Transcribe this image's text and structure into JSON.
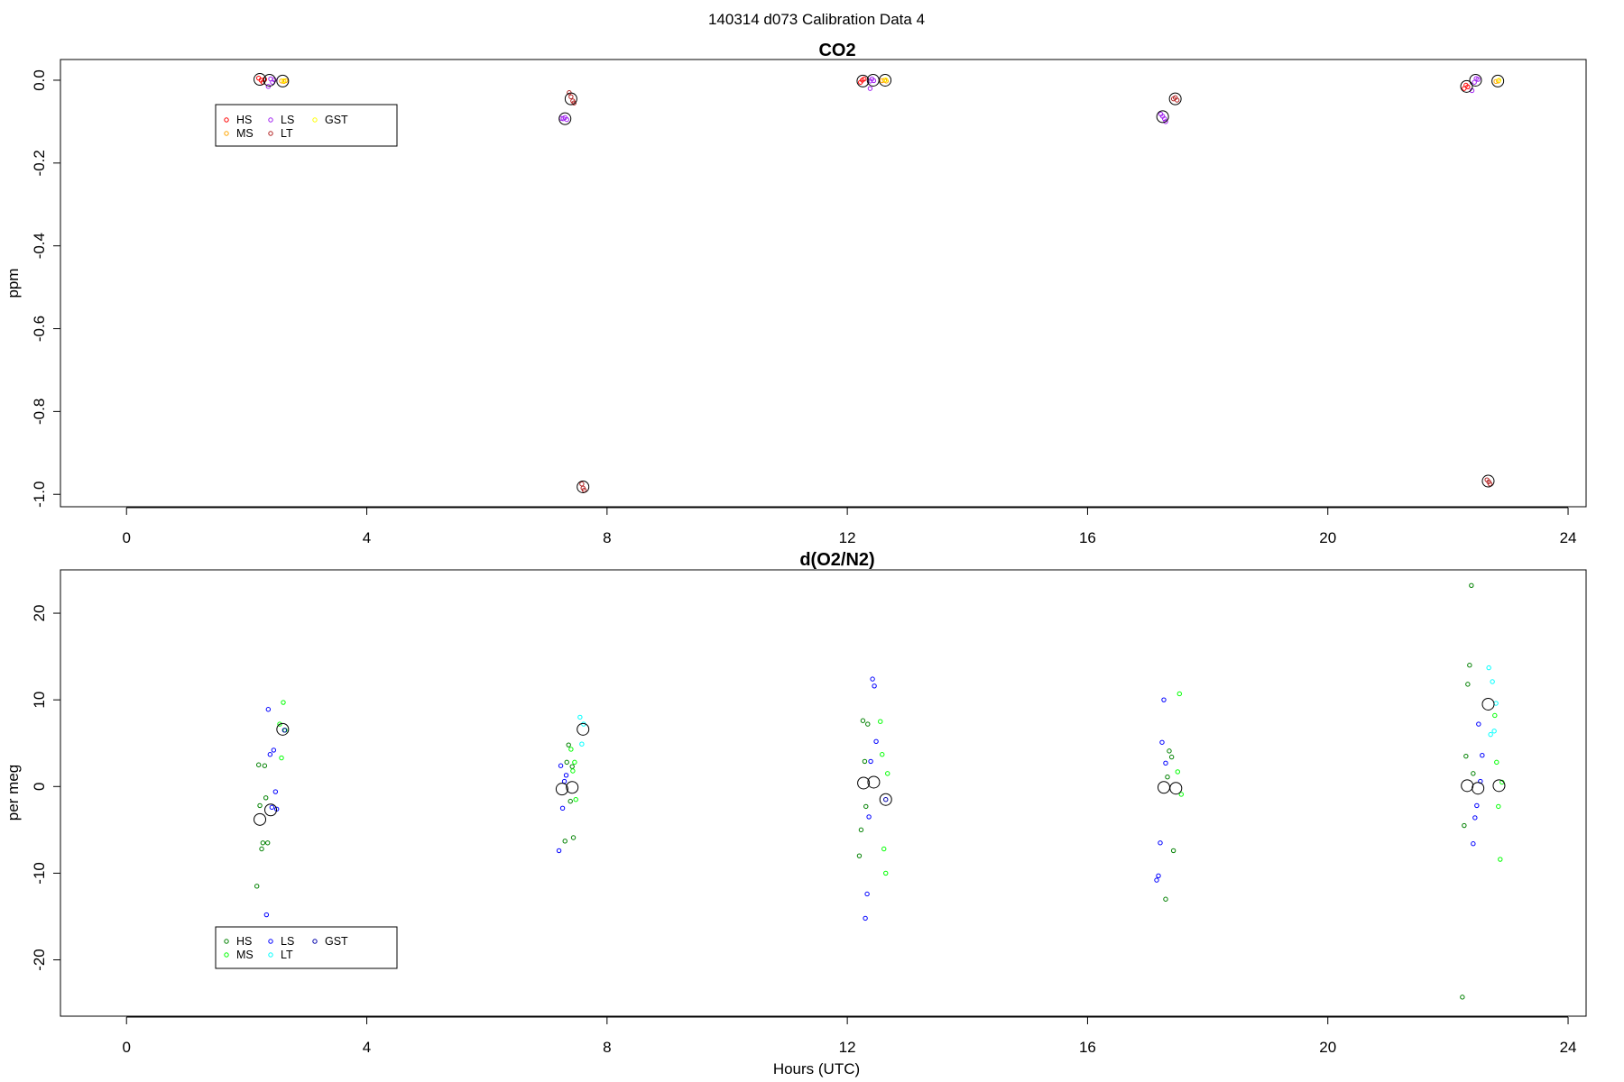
{
  "figure": {
    "suptitle": "140314   d073   Calibration Data 4"
  },
  "chart_data": [
    {
      "type": "scatter",
      "title": "CO2",
      "xlabel": "",
      "ylabel": "ppm",
      "xlim": [
        -1.1,
        24.3
      ],
      "ylim": [
        -1.03,
        0.05
      ],
      "xticks": [
        0,
        4,
        8,
        12,
        16,
        20,
        24
      ],
      "yticks": [
        0.0,
        -0.2,
        -0.4,
        -0.6,
        -0.8,
        -1.0
      ],
      "ytick_labels": [
        "0.0",
        "-0.2",
        "-0.4",
        "-0.6",
        "-0.8",
        "-1.0"
      ],
      "legend": {
        "position": "top-left",
        "columns": 3
      },
      "series": [
        {
          "name": "HS",
          "color": "#ff0000",
          "x": [
            2.2,
            2.24,
            2.27,
            2.3,
            12.22,
            12.25,
            12.28,
            22.27,
            22.3,
            22.33
          ],
          "y": [
            0.005,
            0.0,
            -0.005,
            0.002,
            -0.005,
            0.0,
            0.003,
            -0.02,
            -0.012,
            -0.016
          ]
        },
        {
          "name": "MS",
          "color": "#ffa500",
          "x": [
            2.58,
            2.62,
            2.65,
            12.58,
            12.62,
            12.65,
            22.8,
            22.84
          ],
          "y": [
            -0.002,
            -0.003,
            -0.001,
            -0.001,
            0.0,
            -0.002,
            -0.003,
            -0.002
          ]
        },
        {
          "name": "LS",
          "color": "#a020f0",
          "x": [
            2.4,
            2.43,
            2.46,
            2.36,
            7.24,
            7.27,
            7.3,
            7.33,
            12.38,
            12.41,
            12.44,
            12.38,
            17.22,
            17.25,
            17.28,
            17.3,
            22.44,
            22.47,
            22.5,
            22.4
          ],
          "y": [
            0.003,
            -0.005,
            0.001,
            -0.015,
            -0.092,
            -0.093,
            -0.09,
            -0.095,
            -0.002,
            0.003,
            -0.001,
            -0.02,
            -0.082,
            -0.087,
            -0.093,
            -0.1,
            -0.005,
            0.004,
            0.002,
            -0.025
          ]
        },
        {
          "name": "LT",
          "color": "#b22222",
          "x": [
            7.37,
            7.4,
            7.43,
            7.45,
            7.58,
            7.6,
            7.62,
            17.43,
            17.46,
            17.49,
            22.65,
            22.68,
            22.7
          ],
          "y": [
            -0.03,
            -0.04,
            -0.05,
            -0.055,
            -0.975,
            -0.985,
            -0.99,
            -0.045,
            -0.042,
            -0.048,
            -0.965,
            -0.97,
            -0.975
          ]
        },
        {
          "name": "GST",
          "color": "#ffff00",
          "x": [
            2.62,
            12.64,
            22.85
          ],
          "y": [
            -0.001,
            0.001,
            0.0
          ]
        }
      ],
      "means": {
        "x": [
          2.22,
          2.38,
          2.6,
          7.3,
          7.4,
          7.6,
          12.26,
          12.43,
          12.63,
          17.25,
          17.46,
          22.31,
          22.46,
          22.67,
          22.83
        ],
        "y": [
          0.002,
          0.0,
          -0.002,
          -0.093,
          -0.045,
          -0.982,
          -0.002,
          0.0,
          0.0,
          -0.088,
          -0.045,
          -0.015,
          0.0,
          -0.968,
          -0.002
        ]
      }
    },
    {
      "type": "scatter",
      "title": "d(O2/N2)",
      "xlabel": "Hours (UTC)",
      "ylabel": "per meg",
      "xlim": [
        -1.1,
        24.3
      ],
      "ylim": [
        -26.5,
        25
      ],
      "xticks": [
        0,
        4,
        8,
        12,
        16,
        20,
        24
      ],
      "yticks": [
        20,
        10,
        0,
        -10,
        -20
      ],
      "ytick_labels": [
        "20",
        "10",
        "0",
        "-10",
        "-20"
      ],
      "legend": {
        "position": "bottom-left",
        "columns": 3
      },
      "series": [
        {
          "name": "HS",
          "color": "#008000",
          "x": [
            2.17,
            2.2,
            2.22,
            2.25,
            2.27,
            2.3,
            2.32,
            2.35,
            7.3,
            7.33,
            7.36,
            7.39,
            7.42,
            7.44,
            12.2,
            12.23,
            12.26,
            12.29,
            12.31,
            12.34,
            17.3,
            17.33,
            17.36,
            17.4,
            17.43,
            22.24,
            22.27,
            22.3,
            22.33,
            22.36,
            22.39,
            22.42
          ],
          "y": [
            -11.5,
            2.5,
            -2.2,
            -7.2,
            -6.5,
            2.4,
            -1.3,
            -6.5,
            -6.3,
            2.8,
            4.8,
            -1.7,
            2.3,
            -5.9,
            -8,
            -5,
            7.6,
            2.9,
            -2.3,
            7.2,
            -13,
            1.1,
            4.1,
            3.4,
            -7.4,
            -24.3,
            -4.5,
            3.5,
            11.8,
            14,
            23.2,
            1.5
          ]
        },
        {
          "name": "MS",
          "color": "#00ff00",
          "x": [
            2.55,
            2.58,
            2.61,
            2.64,
            7.4,
            7.43,
            7.46,
            7.48,
            12.55,
            12.58,
            12.61,
            12.64,
            12.67,
            17.5,
            17.53,
            17.56,
            22.78,
            22.81,
            22.84,
            22.87,
            22.9
          ],
          "y": [
            7.2,
            3.3,
            9.7,
            6.5,
            4.3,
            1.8,
            2.8,
            -1.5,
            7.5,
            3.7,
            -7.2,
            -10,
            1.5,
            1.7,
            10.7,
            -0.9,
            8.2,
            2.8,
            -2.3,
            -8.4,
            0.5
          ]
        },
        {
          "name": "LS",
          "color": "#0000ff",
          "x": [
            2.33,
            2.36,
            2.39,
            2.42,
            2.45,
            2.48,
            2.5,
            7.2,
            7.23,
            7.26,
            7.29,
            7.32,
            12.3,
            12.33,
            12.36,
            12.39,
            12.42,
            12.45,
            12.48,
            17.15,
            17.18,
            17.21,
            17.24,
            17.27,
            17.3,
            22.42,
            22.45,
            22.48,
            22.51,
            22.54,
            22.57
          ],
          "y": [
            -14.8,
            8.9,
            3.7,
            -2.4,
            4.2,
            -0.6,
            -2.6,
            -7.4,
            2.4,
            -2.5,
            0.6,
            1.3,
            -15.2,
            -12.4,
            -3.5,
            2.9,
            12.4,
            11.6,
            5.2,
            -10.8,
            -10.3,
            -6.5,
            5.1,
            10,
            2.7,
            -6.6,
            -3.6,
            -2.2,
            7.2,
            0.6,
            3.6
          ]
        },
        {
          "name": "LT",
          "color": "#00ffff",
          "x": [
            7.55,
            7.58,
            7.61,
            22.68,
            22.71,
            22.74,
            22.77,
            22.8
          ],
          "y": [
            8,
            4.9,
            7.2,
            13.7,
            6,
            12.1,
            6.4,
            9.6
          ]
        },
        {
          "name": "GST",
          "color": "#0000aa",
          "x": [
            2.63,
            12.64
          ],
          "y": [
            6.5,
            -1.5
          ]
        }
      ],
      "means": {
        "x": [
          2.22,
          2.4,
          2.6,
          7.25,
          7.42,
          7.6,
          12.27,
          12.44,
          12.64,
          17.27,
          17.47,
          22.32,
          22.5,
          22.67,
          22.85
        ],
        "y": [
          -3.8,
          -2.7,
          6.6,
          -0.3,
          -0.1,
          6.6,
          0.4,
          0.5,
          -1.5,
          -0.1,
          -0.2,
          0.1,
          -0.2,
          9.5,
          0.1
        ]
      }
    }
  ]
}
